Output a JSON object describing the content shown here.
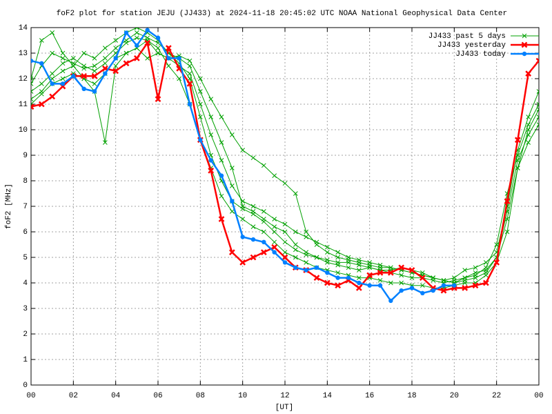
{
  "chart_data": {
    "type": "line",
    "title": "foF2 plot for station JEJU (JJ433) at 2024-11-18 20:45:02 UTC",
    "subtitle": "NOAA National Geophysical Data Center",
    "xlabel": "[UT]",
    "ylabel": "foF2 [MHz]",
    "xlim": [
      0,
      24
    ],
    "ylim": [
      0,
      14
    ],
    "xticks": [
      {
        "value": 0,
        "label": "00"
      },
      {
        "value": 2,
        "label": "02"
      },
      {
        "value": 4,
        "label": "04"
      },
      {
        "value": 6,
        "label": "06"
      },
      {
        "value": 8,
        "label": "08"
      },
      10,
      12,
      14,
      16,
      18,
      20,
      22,
      {
        "value": 24,
        "label": "00"
      }
    ],
    "yticks": [
      0,
      1,
      2,
      3,
      4,
      5,
      6,
      7,
      8,
      9,
      10,
      11,
      12,
      13,
      14
    ],
    "grid": true,
    "legend": "top-right",
    "x": [
      0,
      0.5,
      1,
      1.5,
      2,
      2.5,
      3,
      3.5,
      4,
      4.5,
      5,
      5.5,
      6,
      6.5,
      7,
      7.5,
      8,
      8.5,
      9,
      9.5,
      10,
      10.5,
      11,
      11.5,
      12,
      12.5,
      13,
      13.5,
      14,
      14.5,
      15,
      15.5,
      16,
      16.5,
      17,
      17.5,
      18,
      18.5,
      19,
      19.5,
      20,
      20.5,
      21,
      21.5,
      22,
      22.5,
      23,
      23.5,
      24
    ],
    "series": [
      {
        "name": "JJ433 past 5 days",
        "color": "#00a000",
        "marker": "x",
        "values": [
          [
            11.5,
            11.8,
            12.2,
            12.6,
            12.8,
            12.5,
            12.3,
            12.6,
            13.0,
            13.4,
            13.6,
            13.5,
            13.2,
            12.5,
            12.0,
            11.0,
            9.6,
            8.5,
            7.4,
            6.8,
            6.5,
            6.2,
            6.0,
            5.6,
            5.2,
            5.0,
            4.8,
            4.6,
            4.5,
            4.4,
            4.3,
            4.2,
            4.2,
            4.1,
            4.0,
            4.0,
            3.9,
            3.9,
            3.8,
            3.8,
            3.9,
            4.0,
            4.0,
            4.3,
            4.8,
            6.0,
            8.5,
            10.0,
            10.8
          ],
          [
            12.0,
            13.5,
            13.8,
            13.0,
            12.5,
            13.0,
            12.8,
            13.2,
            13.5,
            13.8,
            14.0,
            13.8,
            13.5,
            13.0,
            12.8,
            12.5,
            11.5,
            10.5,
            9.5,
            8.5,
            7.0,
            6.8,
            6.5,
            6.2,
            6.0,
            5.5,
            5.2,
            5.0,
            4.8,
            4.7,
            4.6,
            4.5,
            4.6,
            4.5,
            4.4,
            4.3,
            4.2,
            4.2,
            4.1,
            4.0,
            4.1,
            4.2,
            4.3,
            4.6,
            5.5,
            7.5,
            9.0,
            10.2,
            11.0
          ],
          [
            11.2,
            11.5,
            12.0,
            12.3,
            12.5,
            12.0,
            11.8,
            12.2,
            12.8,
            13.0,
            13.2,
            12.8,
            13.0,
            12.8,
            12.9,
            12.7,
            12.0,
            11.2,
            10.5,
            9.8,
            9.2,
            8.9,
            8.6,
            8.2,
            7.9,
            7.5,
            6.0,
            5.5,
            5.2,
            5.0,
            4.9,
            4.8,
            4.7,
            4.6,
            4.6,
            4.5,
            4.4,
            4.3,
            4.2,
            4.1,
            4.0,
            4.1,
            4.2,
            4.4,
            5.0,
            6.8,
            8.8,
            9.8,
            10.5
          ],
          [
            11.8,
            12.5,
            13.0,
            12.8,
            12.6,
            12.4,
            12.5,
            12.8,
            13.2,
            13.5,
            13.8,
            13.6,
            13.4,
            13.0,
            12.6,
            12.0,
            10.5,
            9.0,
            8.0,
            7.2,
            6.9,
            6.7,
            6.4,
            6.0,
            5.6,
            5.3,
            5.1,
            5.0,
            4.9,
            4.8,
            4.8,
            4.7,
            4.6,
            4.5,
            4.5,
            4.6,
            4.5,
            4.4,
            4.2,
            4.1,
            4.2,
            4.5,
            4.6,
            4.8,
            5.2,
            7.0,
            9.2,
            10.5,
            11.5
          ],
          [
            11.0,
            11.4,
            11.8,
            12.0,
            12.2,
            12.0,
            11.5,
            9.5,
            12.5,
            13.0,
            13.2,
            13.5,
            13.0,
            12.8,
            12.5,
            12.2,
            11.0,
            9.8,
            8.8,
            7.8,
            7.2,
            7.0,
            6.8,
            6.5,
            6.3,
            6.0,
            5.8,
            5.6,
            5.4,
            5.2,
            5.0,
            4.9,
            4.8,
            4.7,
            4.6,
            4.5,
            4.4,
            4.3,
            4.2,
            4.1,
            4.0,
            4.2,
            4.4,
            4.5,
            5.0,
            6.5,
            8.5,
            9.5,
            10.2
          ]
        ]
      },
      {
        "name": "JJ433 yesterday",
        "color": "#ff0000",
        "marker": "cross",
        "values": [
          10.9,
          11.0,
          11.3,
          11.7,
          12.1,
          12.1,
          12.1,
          12.4,
          12.3,
          12.6,
          12.8,
          13.4,
          11.2,
          13.2,
          12.4,
          11.8,
          9.6,
          8.4,
          6.5,
          5.2,
          4.8,
          5.0,
          5.2,
          5.4,
          5.0,
          4.6,
          4.5,
          4.2,
          4.0,
          3.9,
          4.1,
          3.8,
          4.3,
          4.4,
          4.4,
          4.6,
          4.5,
          4.2,
          3.8,
          3.7,
          3.8,
          3.8,
          3.9,
          4.0,
          4.8,
          7.2,
          9.6,
          12.2,
          12.7
        ]
      },
      {
        "name": "JJ433 today",
        "color": "#0080ff",
        "marker": "circle",
        "values": [
          12.7,
          12.6,
          11.8,
          11.8,
          12.1,
          11.6,
          11.5,
          12.2,
          12.8,
          13.8,
          13.3,
          13.9,
          13.6,
          12.8,
          12.8,
          11.0,
          9.6,
          8.8,
          8.2,
          7.2,
          5.8,
          5.7,
          5.6,
          5.2,
          4.8,
          4.6,
          4.5,
          4.6,
          4.4,
          4.2,
          4.2,
          4.0,
          3.9,
          3.9,
          3.3,
          3.7,
          3.8,
          3.6,
          3.7,
          3.9,
          3.9,
          null,
          null,
          null,
          null,
          null,
          null,
          null,
          null
        ]
      }
    ]
  }
}
